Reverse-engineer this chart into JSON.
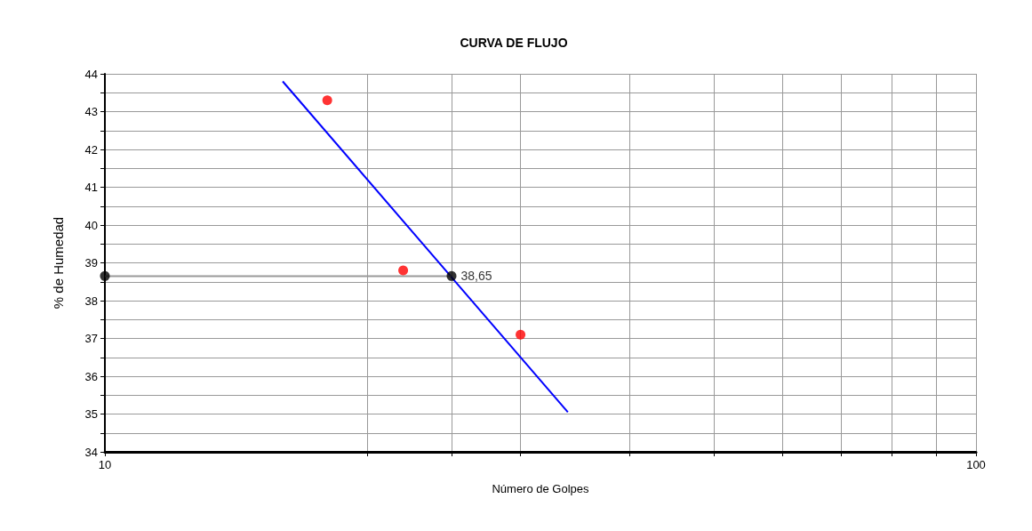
{
  "chart_data": {
    "type": "scatter",
    "title": "CURVA DE FLUJO",
    "xlabel": "Número de Golpes",
    "ylabel": "% de Humedad",
    "log": "x",
    "xlim": [
      10,
      100
    ],
    "ylim": [
      34,
      44
    ],
    "xticks": [
      10,
      {
        "value": 20,
        "label": null
      },
      {
        "value": 25,
        "label": null
      },
      {
        "value": 30,
        "label": null
      },
      {
        "value": 40,
        "label": null
      },
      {
        "value": 50,
        "label": null
      },
      {
        "value": 60,
        "label": null
      },
      {
        "value": 70,
        "label": null
      },
      {
        "value": 80,
        "label": null
      },
      {
        "value": 90,
        "label": null
      },
      100
    ],
    "yticks": [
      34,
      {
        "value": 34.5,
        "label": null
      },
      35,
      {
        "value": 35.5,
        "label": null
      },
      36,
      {
        "value": 36.5,
        "label": null
      },
      37,
      {
        "value": 37.5,
        "label": null
      },
      38,
      {
        "value": 38.5,
        "label": null
      },
      39,
      {
        "value": 39.5,
        "label": null
      },
      40,
      {
        "value": 40.5,
        "label": null
      },
      41,
      {
        "value": 41.5,
        "label": null
      },
      42,
      {
        "value": 42.5,
        "label": null
      },
      43,
      {
        "value": 43.5,
        "label": null
      },
      44
    ],
    "grid": true,
    "series": [
      {
        "color": "#ff0000",
        "marker": "circle",
        "x": [
          18,
          22,
          30
        ],
        "values": [
          43.3,
          38.8,
          37.1
        ]
      },
      {
        "type": "line",
        "color": "#0000ff",
        "marker": "none",
        "x": [
          16,
          34
        ],
        "values": [
          43.8,
          35.05
        ]
      },
      {
        "type": "line",
        "color": "#999999",
        "marker": "none",
        "x": [
          10,
          25
        ],
        "values": [
          38.65,
          38.65
        ]
      },
      {
        "color": "#000000",
        "marker": "circle",
        "x": [
          10,
          25
        ],
        "values": [
          38.65,
          38.65
        ],
        "value_labels": [
          null,
          "38,65"
        ]
      }
    ]
  }
}
